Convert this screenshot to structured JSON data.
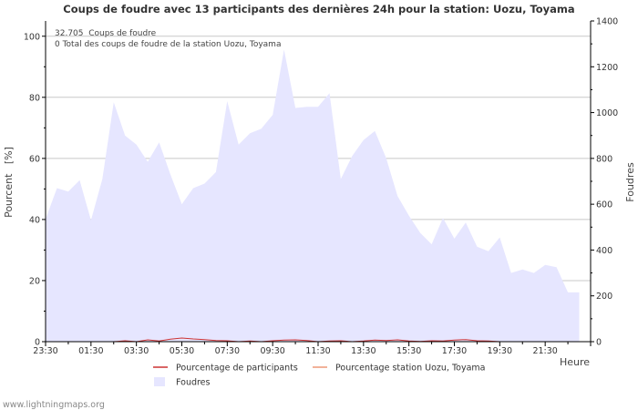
{
  "chart_data": {
    "type": "area",
    "title": "Coups de foudre avec 13 participants des dernières 24h pour la station: Uozu, Toyama",
    "annotations": [
      "32.705  Coups de foudre",
      "0 Total des coups de foudre de la station Uozu, Toyama"
    ],
    "xlabel": "Heure",
    "ylabel_left": "Pourcent   [%]",
    "ylabel_right": "Foudres",
    "ylim_left": [
      0,
      105
    ],
    "ylim_right": [
      0,
      1400
    ],
    "yticks_left": [
      0,
      20,
      40,
      60,
      80,
      100
    ],
    "yticks_right": [
      0,
      200,
      400,
      600,
      800,
      1000,
      1200,
      1400
    ],
    "x_tick_labels": [
      "23:30",
      "01:30",
      "03:30",
      "05:30",
      "07:30",
      "09:30",
      "11:30",
      "13:30",
      "15:30",
      "17:30",
      "19:30",
      "21:30"
    ],
    "x_hours": [
      23.5,
      0,
      0.5,
      1,
      1.5,
      2,
      2.5,
      3,
      3.5,
      4,
      4.5,
      5,
      5.5,
      6,
      6.5,
      7,
      7.5,
      8,
      8.5,
      9,
      9.5,
      10,
      10.5,
      11,
      11.5,
      12,
      12.5,
      13,
      13.5,
      14,
      14.5,
      15,
      15.5,
      16,
      16.5,
      17,
      17.5,
      18,
      18.5,
      19,
      19.5,
      20,
      20.5,
      21,
      21.5,
      22,
      22.5,
      23
    ],
    "series": [
      {
        "name": "Foudres",
        "axis": "right",
        "color": "#e6e6ff",
        "values": [
          535,
          670,
          655,
          705,
          530,
          710,
          1045,
          900,
          860,
          785,
          870,
          730,
          600,
          670,
          690,
          740,
          1050,
          860,
          910,
          930,
          990,
          1275,
          1020,
          1025,
          1025,
          1085,
          710,
          810,
          880,
          920,
          800,
          635,
          550,
          475,
          425,
          540,
          450,
          520,
          415,
          395,
          455,
          300,
          315,
          300,
          335,
          325,
          215,
          215
        ]
      },
      {
        "name": "Pourcentage de participants",
        "axis": "left",
        "color": "#cc3333",
        "values": [
          0,
          0,
          0,
          0,
          0,
          0,
          0,
          0.3,
          0,
          0.6,
          0.2,
          0.8,
          1.2,
          0.9,
          0.7,
          0.4,
          0.3,
          0,
          0.2,
          0,
          0.3,
          0.5,
          0.6,
          0.4,
          0,
          0.2,
          0.3,
          0,
          0.2,
          0.5,
          0.4,
          0.6,
          0.2,
          0.1,
          0.3,
          0.2,
          0.5,
          0.7,
          0.3,
          0.2,
          0,
          0,
          0,
          0,
          0,
          0,
          0,
          0
        ]
      },
      {
        "name": "Pourcentage station Uozu, Toyama",
        "axis": "left",
        "color": "#ee9977",
        "values": [
          0,
          0,
          0,
          0,
          0,
          0,
          0,
          0,
          0,
          0,
          0,
          0,
          0,
          0,
          0,
          0,
          0,
          0,
          0,
          0,
          0,
          0,
          0,
          0,
          0,
          0,
          0,
          0,
          0,
          0,
          0,
          0,
          0,
          0,
          0,
          0,
          0,
          0,
          0,
          0,
          0,
          0,
          0,
          0,
          0,
          0,
          0,
          0
        ]
      }
    ],
    "legend": [
      {
        "label": "Pourcentage de participants",
        "kind": "line",
        "color": "#cc3333"
      },
      {
        "label": "Pourcentage station Uozu, Toyama",
        "kind": "line",
        "color": "#ee9977"
      },
      {
        "label": "Foudres",
        "kind": "box",
        "color": "#e6e6ff"
      }
    ],
    "grid": true
  },
  "footer": {
    "watermark": "www.lightningmaps.org"
  }
}
